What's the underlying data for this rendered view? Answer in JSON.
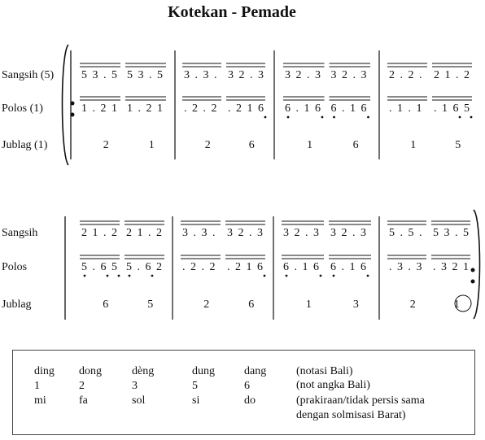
{
  "title": "Kotekan - Pemade",
  "system1": {
    "labels": [
      "Sangsih  (5)",
      "Polos  (1)",
      "Jublag  (1)"
    ],
    "measures": [
      {
        "sangsih": [
          "5 3 . 5",
          "5 3 . 5"
        ],
        "polos": [
          "1 . 2 1",
          "1 . 2 1"
        ],
        "jublag": [
          "2",
          "1"
        ]
      },
      {
        "sangsih": [
          "3 . 3 .",
          "3 2 . 3"
        ],
        "polos": [
          ". 2 . 2",
          ". 2 1 6"
        ],
        "jublag": [
          "2",
          "6"
        ]
      },
      {
        "sangsih": [
          "3 2 . 3",
          "3 2 . 3"
        ],
        "polos": [
          "6 . 1 6",
          "6 . 1 6"
        ],
        "jublag": [
          "1",
          "6"
        ]
      },
      {
        "sangsih": [
          "2 . 2 .",
          "2 1 . 2"
        ],
        "polos": [
          ". 1 . 1",
          ". 1 6 5"
        ],
        "jublag": [
          "1",
          "5"
        ]
      }
    ]
  },
  "system2": {
    "labels": [
      "Sangsih",
      "Polos",
      "Jublag"
    ],
    "measures": [
      {
        "sangsih": [
          "2 1 . 2",
          "2 1 . 2"
        ],
        "polos": [
          "5 . 6 5",
          "5 . 6 2"
        ],
        "jublag": [
          "6",
          "5"
        ]
      },
      {
        "sangsih": [
          "3 . 3 .",
          "3 2 . 3"
        ],
        "polos": [
          ". 2 . 2",
          ". 2 1 6"
        ],
        "jublag": [
          "2",
          "6"
        ]
      },
      {
        "sangsih": [
          "3 2 . 3",
          "3 2 . 3"
        ],
        "polos": [
          "6 . 1 6",
          "6 . 1 6"
        ],
        "jublag": [
          "1",
          "3"
        ]
      },
      {
        "sangsih": [
          "5 . 5 .",
          "5 3 . 5"
        ],
        "polos": [
          ". 3 . 3",
          ". 3 2 1"
        ],
        "jublag": [
          "2",
          "1"
        ]
      }
    ]
  },
  "legend": {
    "bali": [
      "ding",
      "dong",
      "dèng",
      "dung",
      "dang"
    ],
    "angka": [
      "1",
      "2",
      "3",
      "5",
      "6"
    ],
    "solmisasi": [
      "mi",
      "fa",
      "sol",
      "si",
      "do"
    ],
    "notes": [
      "(notasi Bali)",
      "(not angka Bali)",
      "(prakiraan/tidak persis sama",
      "dengan solmisasi Barat)"
    ]
  }
}
